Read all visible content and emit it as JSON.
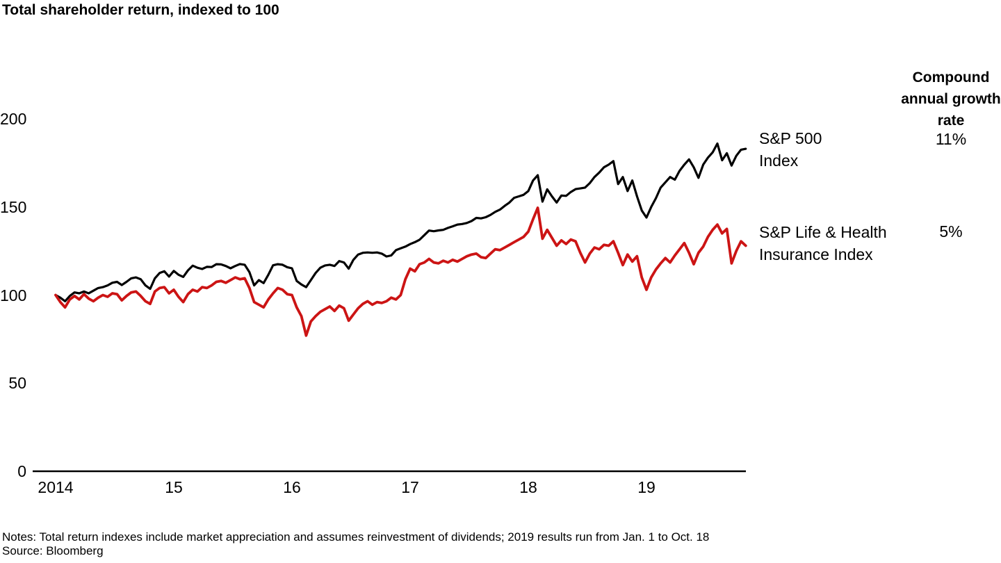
{
  "title": "Total shareholder return, indexed to 100",
  "legend": {
    "cagr_header": "Compound annual growth rate",
    "items": [
      {
        "label_line1": "S&P 500",
        "label_line2": "Index",
        "cagr": "11%",
        "color": "#000000"
      },
      {
        "label_line1": "S&P Life & Health",
        "label_line2": "Insurance Index",
        "cagr": "5%",
        "color": "#cc1414"
      }
    ]
  },
  "notes": {
    "line1": "Notes: Total return indexes include market appreciation and assumes reinvestment of dividends; 2019 results run from Jan. 1 to Oct. 18",
    "line2": "Source: Bloomberg"
  },
  "chart_data": {
    "type": "line",
    "title": "Total shareholder return, indexed to 100",
    "x_unit": "year",
    "x_start": 2014.0,
    "x_step": 0.04,
    "x_end": 2019.84,
    "x_tick_values": [
      2014,
      2015,
      2016,
      2017,
      2018,
      2019
    ],
    "x_tick_labels": [
      "2014",
      "15",
      "16",
      "17",
      "18",
      "19"
    ],
    "y_ticks": [
      0,
      50,
      100,
      150,
      200
    ],
    "ylim": [
      0,
      200
    ],
    "grid": false,
    "legend_position": "right",
    "series": [
      {
        "name": "S&P 500 Index",
        "color": "#000000",
        "compound_annual_growth_rate": "11%",
        "values": [
          100,
          98.5,
          96.5,
          99.5,
          101.5,
          101,
          102,
          101,
          102.5,
          104,
          104.5,
          105.5,
          107,
          107.5,
          105.7,
          107.5,
          109.5,
          110,
          109,
          105.5,
          103.5,
          109.5,
          112.5,
          113.5,
          110.5,
          113.7,
          111.5,
          110.3,
          114,
          116.7,
          115.5,
          114.8,
          116,
          115.9,
          117.5,
          117.4,
          116.5,
          115.2,
          116.5,
          117.6,
          117.2,
          113,
          105.5,
          108.5,
          106.8,
          111.5,
          116.9,
          117.5,
          117.2,
          115.8,
          115.2,
          108,
          106,
          104.5,
          108.5,
          112.5,
          115.5,
          116.8,
          117.2,
          116.5,
          119.3,
          118.5,
          115,
          120,
          123,
          124,
          124.2,
          124,
          124.2,
          123.5,
          121.9,
          122.5,
          125.5,
          126.5,
          127.5,
          128.9,
          130,
          131.4,
          134,
          136.6,
          136.2,
          136.7,
          137,
          138.1,
          139,
          140,
          140.3,
          140.9,
          142,
          143.8,
          143.5,
          144.2,
          145.5,
          147.2,
          148.5,
          150.6,
          152.5,
          155.2,
          156,
          156.9,
          159,
          165,
          168,
          153,
          160,
          156,
          152.5,
          156.5,
          156.3,
          158.5,
          160.1,
          160.5,
          161,
          163.5,
          167,
          169.5,
          172.5,
          174,
          176,
          163,
          167,
          159,
          165,
          156,
          148,
          144,
          150,
          155,
          161,
          164,
          167,
          165.5,
          170.5,
          174,
          177,
          172.5,
          166.5,
          174,
          178,
          181,
          186,
          176.5,
          180.5,
          173.5,
          179,
          182.5,
          183
        ]
      },
      {
        "name": "S&P Life & Health Insurance Index",
        "color": "#cc1414",
        "compound_annual_growth_rate": "5%",
        "values": [
          100,
          96,
          93,
          97.5,
          99.5,
          97.5,
          100.5,
          98,
          96.5,
          98.5,
          100,
          99,
          101,
          100.5,
          97,
          99.5,
          101.5,
          102,
          99.5,
          96.5,
          95,
          102,
          104,
          104.5,
          101,
          103,
          99,
          96,
          100.5,
          103,
          102,
          104.5,
          104,
          105.5,
          107.5,
          108,
          107,
          108.5,
          110,
          109,
          109.5,
          104,
          96,
          94.5,
          93,
          97.5,
          101,
          104,
          103,
          100.5,
          100,
          93,
          88,
          77,
          85,
          88,
          90.5,
          92,
          93.5,
          91,
          94,
          92.5,
          85.5,
          89,
          92.5,
          95,
          96.5,
          94.5,
          96,
          95.5,
          96.5,
          98.5,
          97.5,
          100,
          109,
          115,
          113.5,
          117.5,
          118.5,
          120.5,
          118.5,
          118,
          119.5,
          118.5,
          120,
          119,
          120.5,
          122,
          123,
          123.5,
          121.5,
          121,
          123.5,
          126,
          125.5,
          127,
          128.5,
          130,
          131.5,
          133,
          136,
          143,
          149.5,
          132,
          137,
          132.5,
          128,
          131,
          129,
          131.5,
          130.5,
          124,
          118.5,
          123.5,
          127,
          126,
          128.5,
          128,
          130.5,
          124,
          117,
          123,
          119,
          122,
          110,
          103,
          110,
          114.5,
          118,
          121,
          118.5,
          122.5,
          126,
          129.5,
          124,
          117.5,
          124,
          127.5,
          133,
          137,
          140,
          135,
          137.5,
          118,
          125,
          130.5,
          128
        ]
      }
    ]
  }
}
